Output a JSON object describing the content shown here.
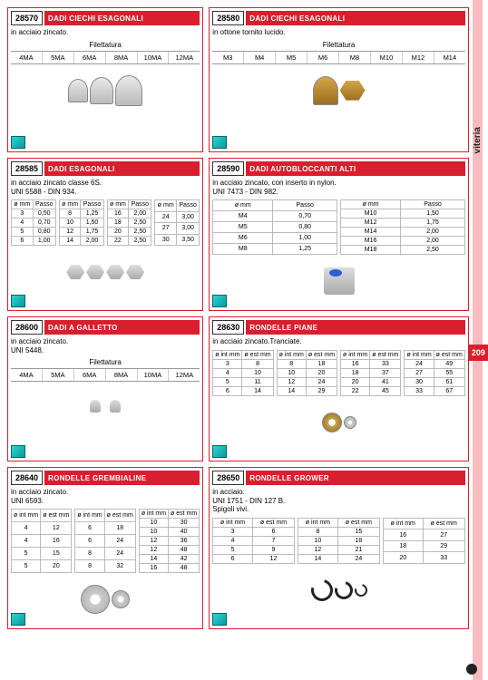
{
  "sidebar": {
    "label": "viteria",
    "page": "209"
  },
  "panels": [
    {
      "code": "28570",
      "title": "DADI CIECHI ESAGONALI",
      "desc": "in acciaio zincato.",
      "thread_label": "Filettatura",
      "threads": [
        "4MA",
        "5MA",
        "6MA",
        "8MA",
        "10MA",
        "12MA"
      ]
    },
    {
      "code": "28580",
      "title": "DADI CIECHI ESAGONALI",
      "desc": "in ottone tornito lucido.",
      "thread_label": "Filettatura",
      "threads": [
        "M3",
        "M4",
        "M5",
        "M6",
        "M8",
        "M10",
        "M12",
        "M14"
      ]
    },
    {
      "code": "28585",
      "title": "DADI ESAGONALI",
      "desc": "in acciaio zincato classe 6S.\nUNI 5588 - DIN 934.",
      "pitch": {
        "hdr": [
          "ø mm",
          "Passo"
        ],
        "cols": [
          [
            [
              "3",
              "0,50"
            ],
            [
              "4",
              "0,70"
            ],
            [
              "5",
              "0,80"
            ],
            [
              "6",
              "1,00"
            ]
          ],
          [
            [
              "8",
              "1,25"
            ],
            [
              "10",
              "1,50"
            ],
            [
              "12",
              "1,75"
            ],
            [
              "14",
              "2,00"
            ]
          ],
          [
            [
              "16",
              "2,00"
            ],
            [
              "18",
              "2,50"
            ],
            [
              "20",
              "2,50"
            ],
            [
              "22",
              "2,50"
            ]
          ],
          [
            [
              "24",
              "3,00"
            ],
            [
              "27",
              "3,00"
            ],
            [
              "30",
              "3,50"
            ]
          ]
        ]
      }
    },
    {
      "code": "28590",
      "title": "DADI AUTOBLOCCANTI ALTI",
      "desc": "in acciaio zincato, con inserto in nylon.\nUNI 7473 - DIN 982.",
      "pitch": {
        "hdr": [
          "ø mm",
          "Passo"
        ],
        "cols": [
          [
            [
              "M4",
              "0,70"
            ],
            [
              "M5",
              "0,80"
            ],
            [
              "M6",
              "1,00"
            ],
            [
              "M8",
              "1,25"
            ]
          ],
          [
            [
              "M10",
              "1,50"
            ],
            [
              "M12",
              "1,75"
            ],
            [
              "M14",
              "2,00"
            ],
            [
              "M16",
              "2,00"
            ],
            [
              "M18",
              "2,50"
            ]
          ]
        ]
      }
    },
    {
      "code": "28600",
      "title": "DADI A GALLETTO",
      "desc": "in acciaio zincato.\nUNI 5448.",
      "thread_label": "Filettatura",
      "threads": [
        "4MA",
        "5MA",
        "6MA",
        "8MA",
        "10MA",
        "12MA"
      ]
    },
    {
      "code": "28630",
      "title": "RONDELLE PIANE",
      "desc": "in acciaio zincato.Tranciate.",
      "dims": {
        "hdr": [
          "ø int mm",
          "ø est mm"
        ],
        "cols": [
          [
            [
              "3",
              "8"
            ],
            [
              "4",
              "10"
            ],
            [
              "5",
              "11"
            ],
            [
              "6",
              "14"
            ]
          ],
          [
            [
              "8",
              "18"
            ],
            [
              "10",
              "20"
            ],
            [
              "12",
              "24"
            ],
            [
              "14",
              "29"
            ]
          ],
          [
            [
              "16",
              "33"
            ],
            [
              "18",
              "37"
            ],
            [
              "20",
              "41"
            ],
            [
              "22",
              "45"
            ]
          ],
          [
            [
              "24",
              "49"
            ],
            [
              "27",
              "55"
            ],
            [
              "30",
              "61"
            ],
            [
              "33",
              "67"
            ]
          ]
        ]
      }
    },
    {
      "code": "28640",
      "title": "RONDELLE GREMBIALINE",
      "desc": "in acciaio zincato.\nUNI 6593.",
      "dims": {
        "hdr": [
          "ø int mm",
          "ø est mm"
        ],
        "cols": [
          [
            [
              "4",
              "12"
            ],
            [
              "4",
              "16"
            ],
            [
              "5",
              "15"
            ],
            [
              "5",
              "20"
            ]
          ],
          [
            [
              "6",
              "18"
            ],
            [
              "6",
              "24"
            ],
            [
              "8",
              "24"
            ],
            [
              "8",
              "32"
            ]
          ],
          [
            [
              "10",
              "30"
            ],
            [
              "10",
              "40"
            ],
            [
              "12",
              "36"
            ],
            [
              "12",
              "48"
            ],
            [
              "14",
              "42"
            ],
            [
              "16",
              "48"
            ]
          ]
        ]
      }
    },
    {
      "code": "28650",
      "title": "RONDELLE GROWER",
      "desc": "in acciaio.\nUNI 1751 - DIN 127 B.\nSpigoli vivi.",
      "dims": {
        "hdr": [
          "ø int mm",
          "ø est mm"
        ],
        "cols": [
          [
            [
              "3",
              "6"
            ],
            [
              "4",
              "7"
            ],
            [
              "5",
              "9"
            ],
            [
              "6",
              "12"
            ]
          ],
          [
            [
              "8",
              "15"
            ],
            [
              "10",
              "18"
            ],
            [
              "12",
              "21"
            ],
            [
              "14",
              "24"
            ]
          ],
          [
            [
              "16",
              "27"
            ],
            [
              "18",
              "29"
            ],
            [
              "20",
              "33"
            ]
          ]
        ]
      }
    }
  ]
}
